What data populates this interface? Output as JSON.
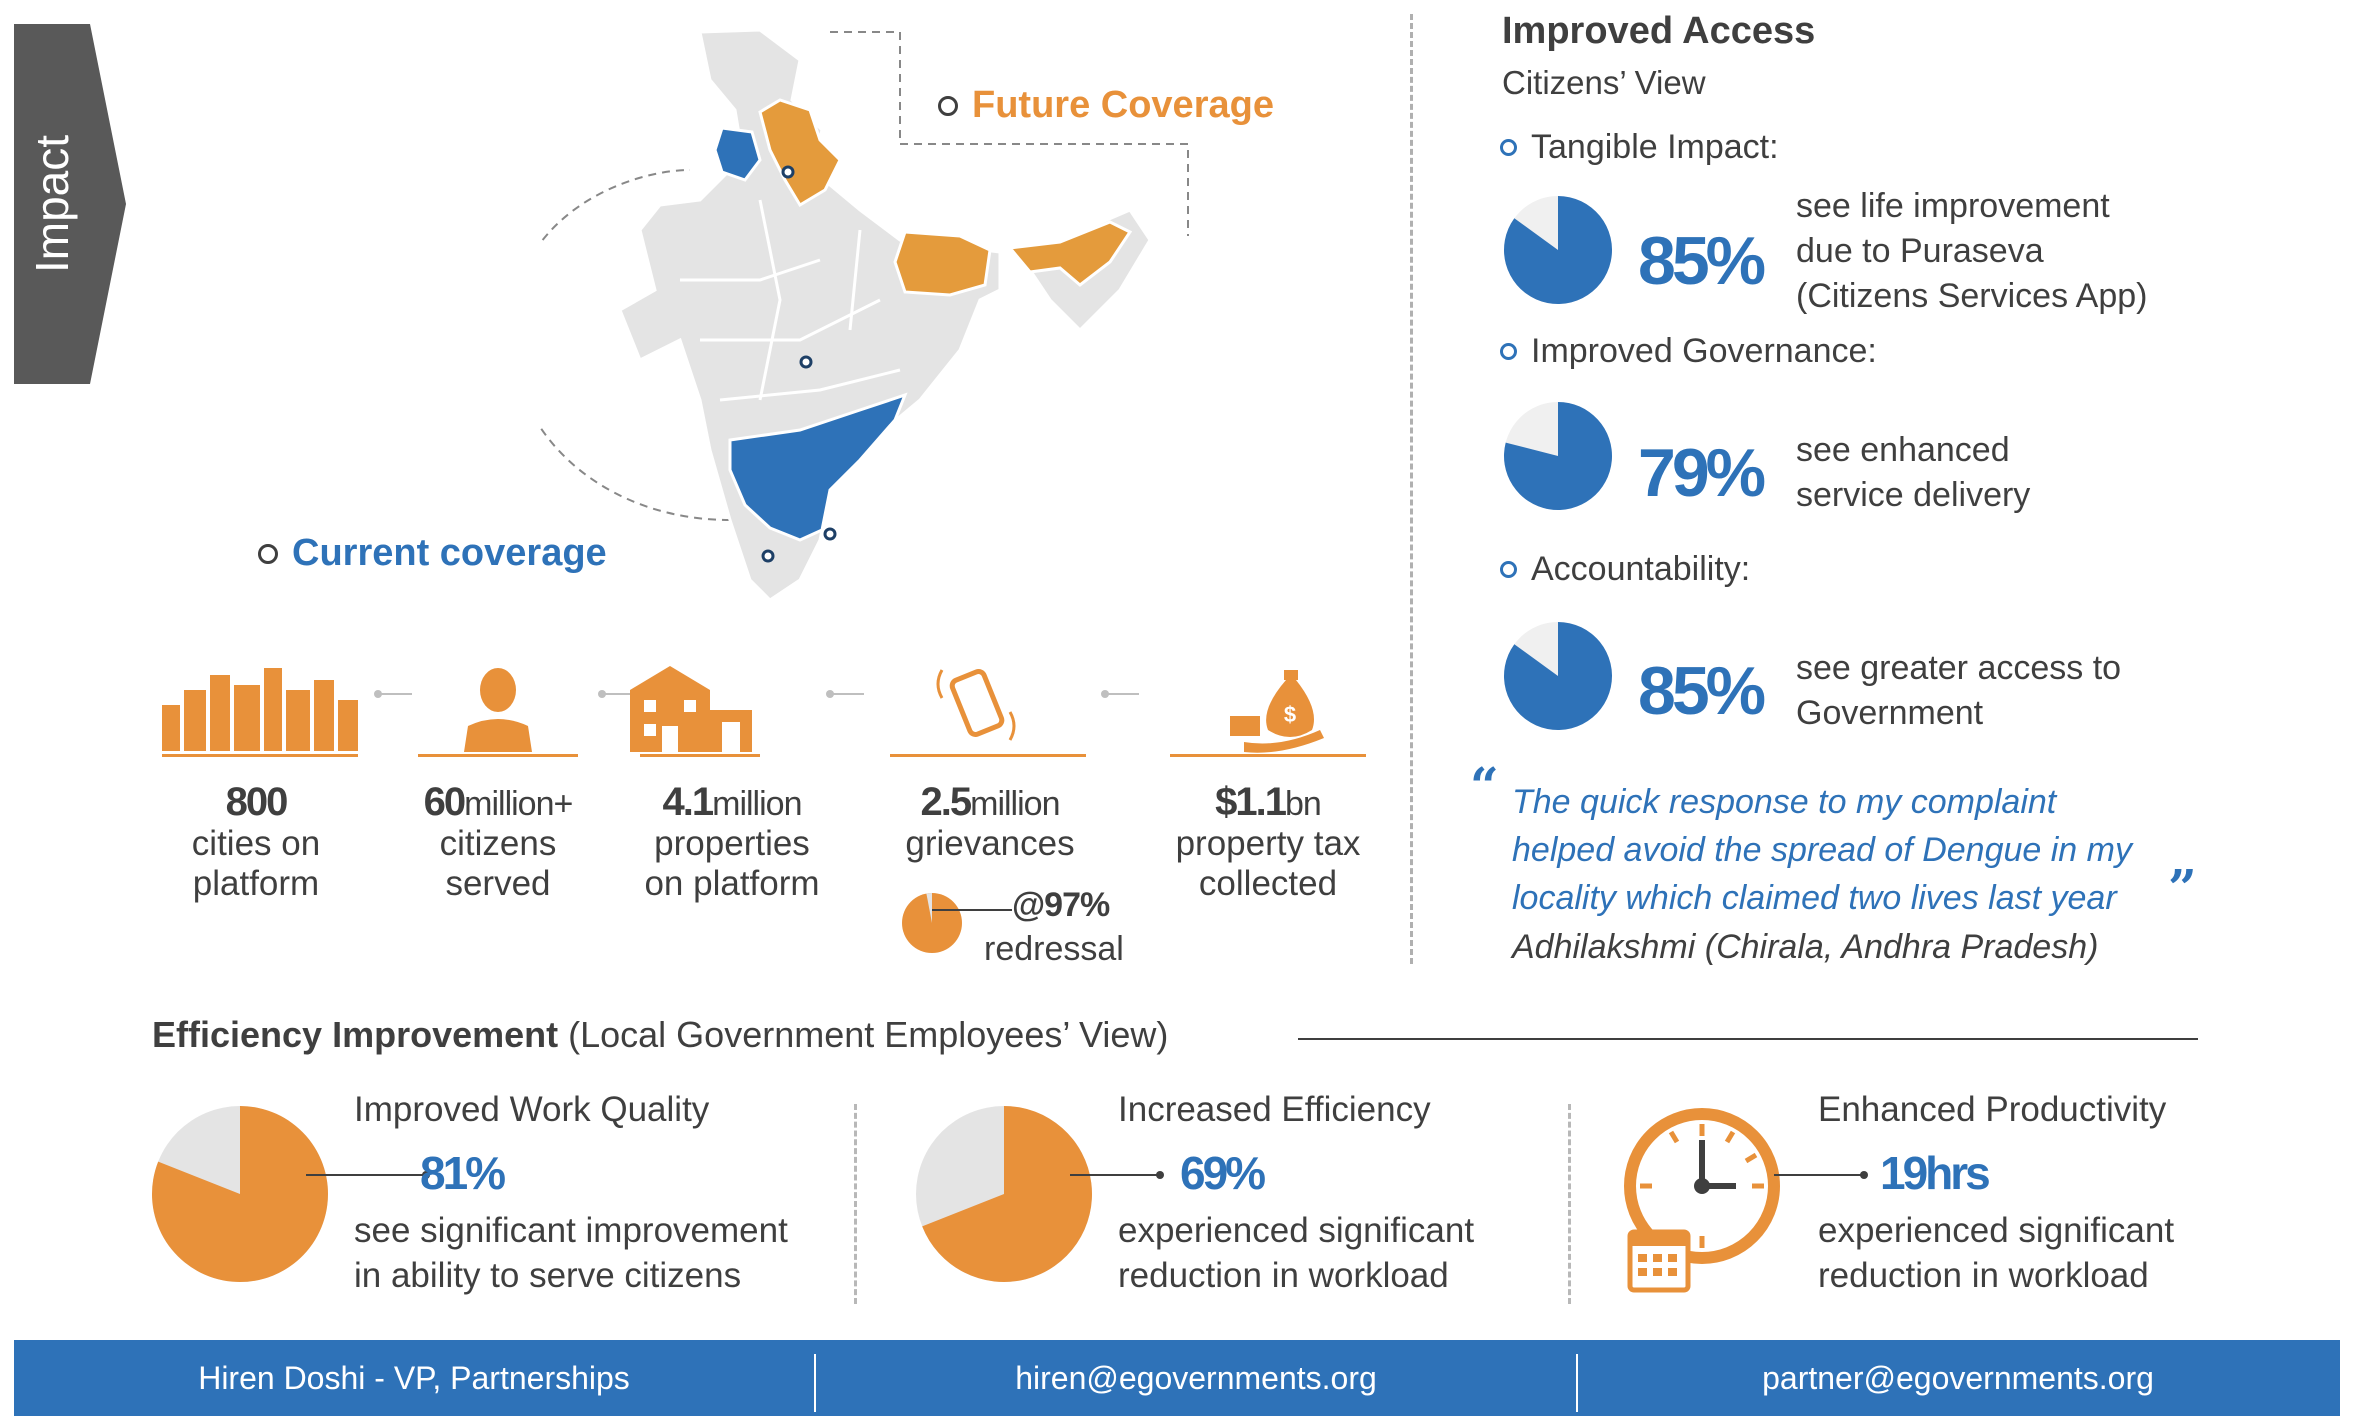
{
  "side_tab": {
    "label": "Impact"
  },
  "map": {
    "future_label": "Future Coverage",
    "current_label": "Current coverage"
  },
  "stats": [
    {
      "num": "800",
      "unit": "",
      "line1": "cities on",
      "line2": "platform"
    },
    {
      "num": "60",
      "unit": "million+",
      "line1": "citizens",
      "line2": "served"
    },
    {
      "num": "4.1",
      "unit": "million",
      "line1": "properties",
      "line2": "on platform"
    },
    {
      "num": "2.5",
      "unit": "million",
      "line1": "grievances",
      "line2": ""
    },
    {
      "num": "$1.1",
      "unit": "bn",
      "line1": "property tax",
      "line2": "collected"
    }
  ],
  "redressal": {
    "pct": "@97%",
    "label": "redressal",
    "value": 97
  },
  "improved_access": {
    "title": "Improved Access",
    "subtitle": "Citizens’ View",
    "items": [
      {
        "heading": "Tangible Impact:",
        "pct": "85%",
        "value": 85,
        "lines": [
          "see life improvement",
          "due to Puraseva",
          "(Citizens Services App)"
        ]
      },
      {
        "heading": "Improved Governance:",
        "pct": "79%",
        "value": 79,
        "lines": [
          "see enhanced",
          "service delivery"
        ]
      },
      {
        "heading": "Accountability:",
        "pct": "85%",
        "value": 85,
        "lines": [
          "see greater access to",
          "Government"
        ]
      }
    ],
    "quote_lines": [
      "The quick response to my complaint",
      "helped avoid the spread of Dengue in my",
      "locality which claimed two lives last year"
    ],
    "quote_author": "Adhilakshmi (Chirala, Andhra Pradesh)"
  },
  "efficiency": {
    "title_bold": "Efficiency Improvement",
    "title_rest": " (Local Government Employees’ View)",
    "cards": [
      {
        "heading": "Improved Work Quality",
        "pct": "81%",
        "value": 81,
        "lines": [
          "see significant improvement",
          "in ability to serve citizens"
        ]
      },
      {
        "heading": "Increased Efficiency",
        "pct": "69%",
        "value": 69,
        "lines": [
          "experienced significant",
          "reduction in workload"
        ]
      },
      {
        "heading": "Enhanced Productivity",
        "pct": "19hrs",
        "lines": [
          "experienced significant",
          "reduction in workload"
        ]
      }
    ]
  },
  "footer": {
    "name": "Hiren Doshi - VP, Partnerships",
    "email1": "hiren@egovernments.org",
    "email2": "partner@egovernments.org"
  },
  "colors": {
    "blue": "#2e72b8",
    "orange": "#e8913a",
    "gray_tab": "#595959",
    "map_gray": "#e4e4e4"
  }
}
